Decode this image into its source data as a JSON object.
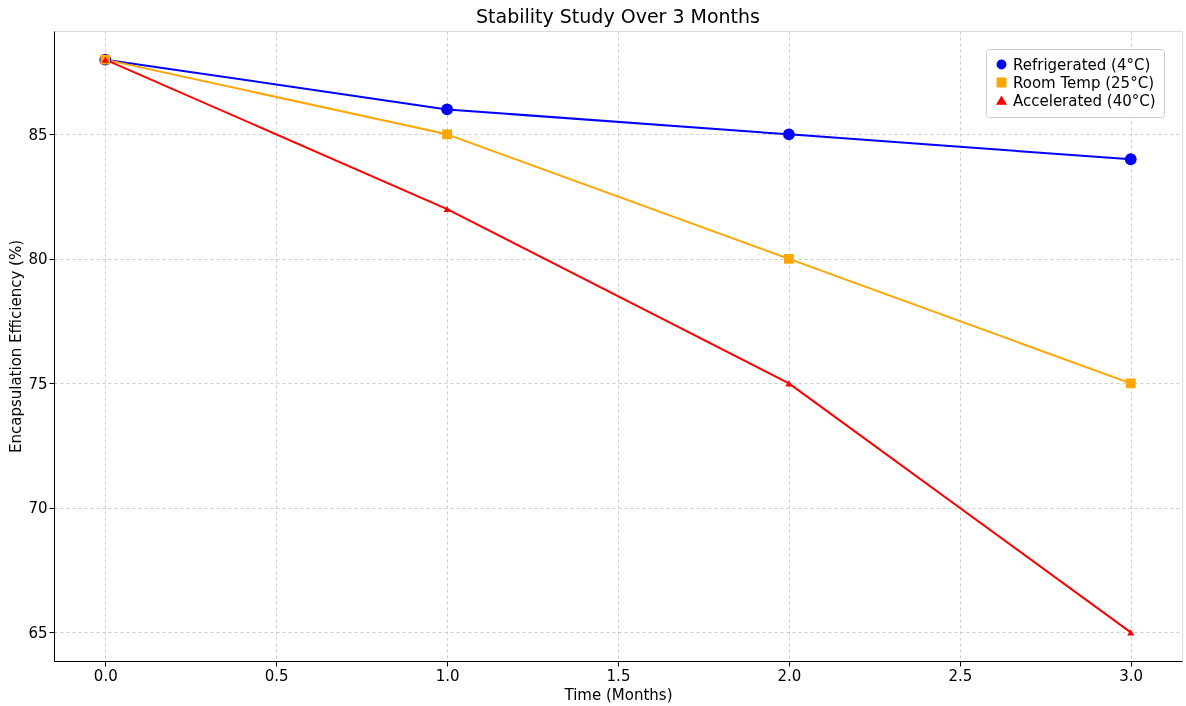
{
  "chart_data": {
    "type": "line",
    "title": "Stability Study Over 3 Months",
    "xlabel": "Time (Months)",
    "ylabel": "Encapsulation Efficiency (%)",
    "x": [
      0,
      1,
      2,
      3
    ],
    "xlim": [
      -0.15,
      3.15
    ],
    "ylim": [
      63.85,
      89.15
    ],
    "xticks": [
      {
        "value": 0,
        "label": "0.0"
      },
      {
        "value": 0.5,
        "label": "0.5"
      },
      {
        "value": 1,
        "label": "1.0"
      },
      {
        "value": 1.5,
        "label": "1.5"
      },
      {
        "value": 2,
        "label": "2.0"
      },
      {
        "value": 2.5,
        "label": "2.5"
      },
      {
        "value": 3,
        "label": "3.0"
      }
    ],
    "yticks": [
      65,
      70,
      75,
      80,
      85
    ],
    "grid": true,
    "legend": "top right",
    "line_style": "solid",
    "series": [
      {
        "name": "Refrigerated (4°C)",
        "color": "#0000ff",
        "marker": "circle",
        "values": [
          88,
          86,
          85,
          84
        ]
      },
      {
        "name": "Room Temp (25°C)",
        "color": "#ffa500",
        "marker": "square",
        "values": [
          88,
          85,
          80,
          75
        ]
      },
      {
        "name": "Accelerated (40°C)",
        "color": "#ff0000",
        "marker": "triangle",
        "values": [
          88,
          82,
          75,
          65
        ]
      }
    ]
  }
}
